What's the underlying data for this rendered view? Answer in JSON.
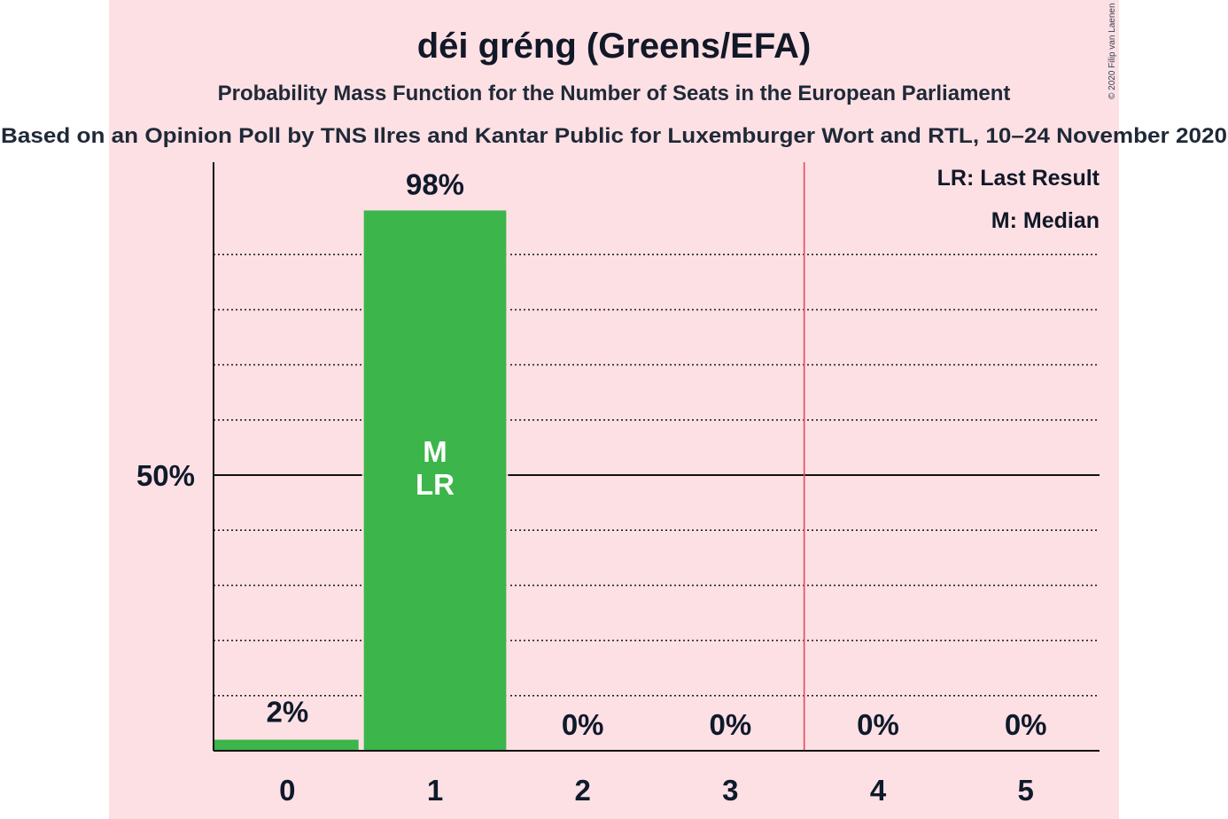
{
  "copyright": "© 2020 Filip van Laenen",
  "colors": {
    "background_band": "#fde0e4",
    "bar": "#3cb54a",
    "threshold_line": "#e24a5a",
    "text": "#0f1a2b"
  },
  "chart_data": {
    "type": "bar",
    "title": "déi gréng (Greens/EFA)",
    "subtitle": "Probability Mass Function for the Number of Seats in the European Parliament",
    "source_line": "Based on an Opinion Poll by TNS Ilres and Kantar Public for Luxemburger Wort and RTL, 10–24 November 2020",
    "categories": [
      "0",
      "1",
      "2",
      "3",
      "4",
      "5"
    ],
    "values": [
      2,
      98,
      0,
      0,
      0,
      0
    ],
    "value_labels": [
      "2%",
      "98%",
      "0%",
      "0%",
      "0%",
      "0%"
    ],
    "ylim": [
      0,
      100
    ],
    "y_tick_label": "50%",
    "y_tick_value": 50,
    "gridlines": [
      10,
      20,
      30,
      40,
      60,
      70,
      80,
      90
    ],
    "majority_threshold_after_category": 3.5,
    "bar_annotations": [
      {
        "category": "1",
        "lines": [
          "M",
          "LR"
        ]
      }
    ],
    "legend": {
      "position": "top-right",
      "items": [
        "LR: Last Result",
        "M: Median"
      ]
    }
  }
}
